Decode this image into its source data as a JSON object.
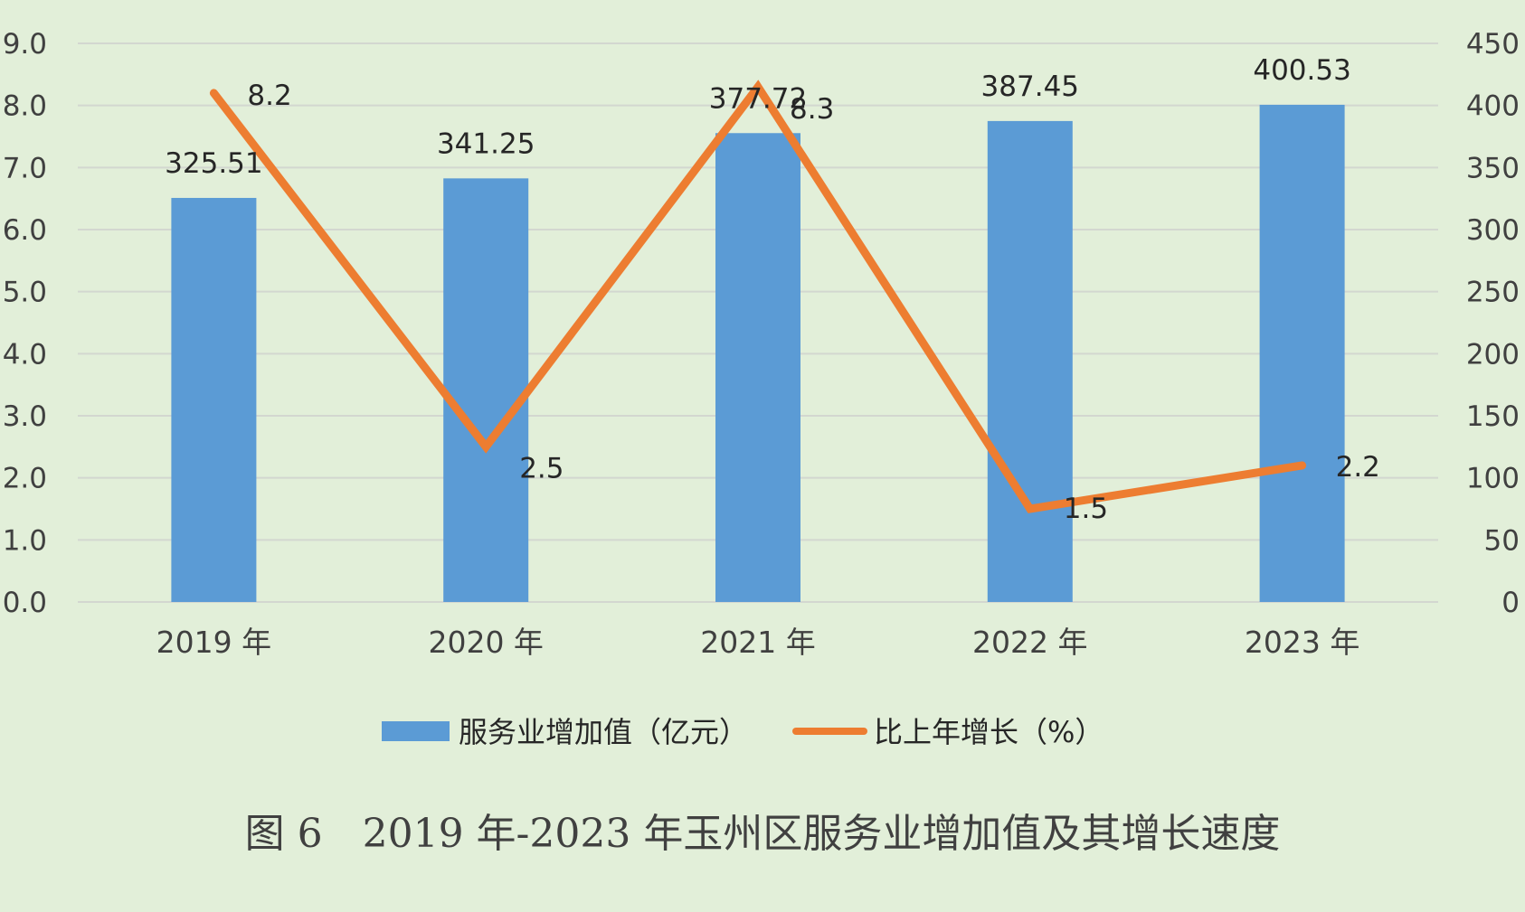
{
  "chart_data": {
    "type": "bar",
    "categories": [
      "2019 年",
      "2020 年",
      "2021 年",
      "2022 年",
      "2023 年"
    ],
    "series": [
      {
        "name": "服务业增加值（亿元）",
        "type": "bar",
        "axis": "right",
        "values": [
          325.51,
          341.25,
          377.72,
          387.45,
          400.53
        ],
        "labels": [
          "325.51",
          "341.25",
          "377.72",
          "387.45",
          "400.53"
        ],
        "color": "#5b9bd5"
      },
      {
        "name": "比上年增长（%）",
        "type": "line",
        "axis": "left",
        "values": [
          8.2,
          2.5,
          8.3,
          1.5,
          2.2
        ],
        "labels": [
          "8.2",
          "2.5",
          "8.3",
          "1.5",
          "2.2"
        ],
        "color": "#ed7d31"
      }
    ],
    "y_left": {
      "ylim": [
        0,
        9
      ],
      "ticks": [
        "0.0",
        "1.0",
        "2.0",
        "3.0",
        "4.0",
        "5.0",
        "6.0",
        "7.0",
        "8.0",
        "9.0"
      ]
    },
    "y_right": {
      "ylim": [
        0,
        450
      ],
      "ticks": [
        "0",
        "50",
        "100",
        "150",
        "200",
        "250",
        "300",
        "350",
        "400",
        "450"
      ]
    },
    "grid": true,
    "legend_position": "bottom",
    "caption": "图 6　2019 年-2023 年玉州区服务业增加值及其增长速度",
    "colors": {
      "background": "#e2efd9",
      "gridline": "#d3d7d0"
    }
  }
}
